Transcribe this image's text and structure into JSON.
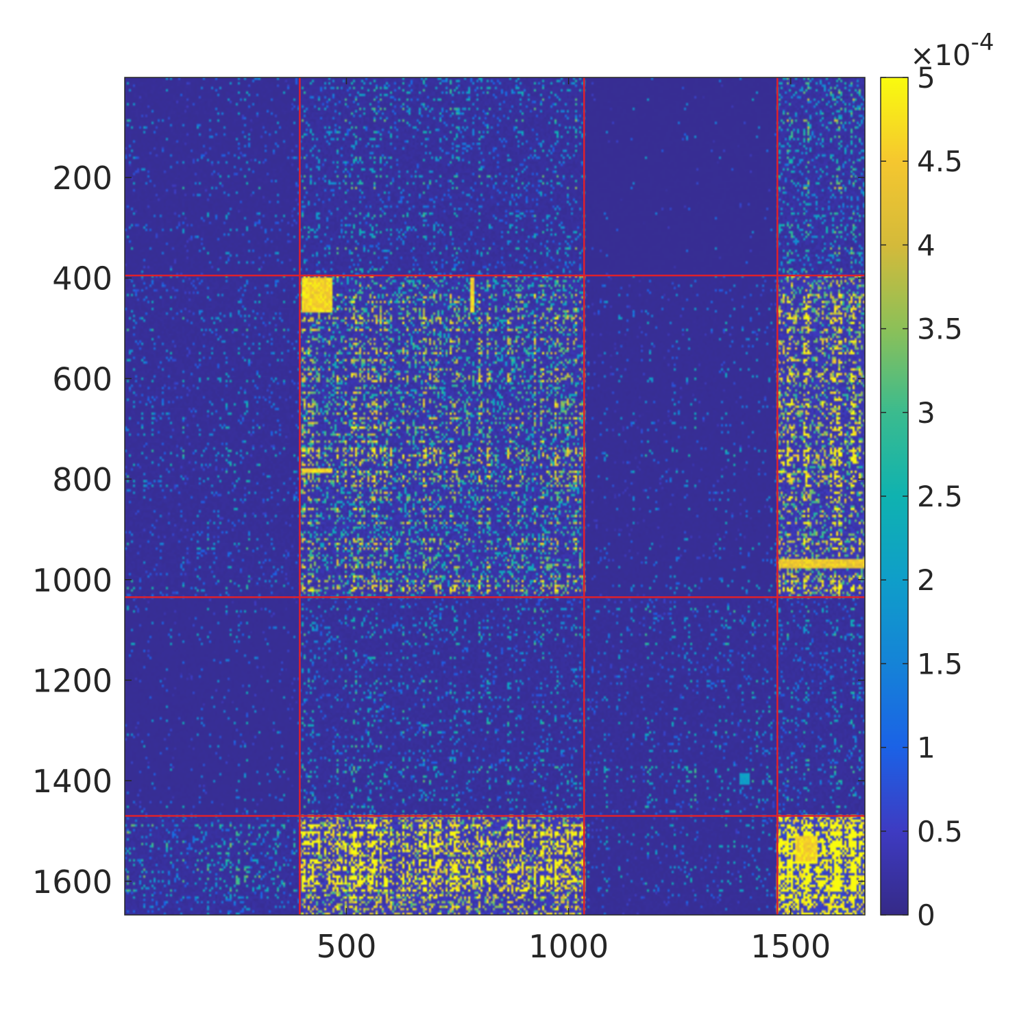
{
  "chart_data": {
    "type": "heatmap",
    "title": "",
    "xlabel": "",
    "ylabel": "",
    "xlim": [
      1,
      1667
    ],
    "ylim": [
      1,
      1667
    ],
    "x_ticks": [
      500,
      1000,
      1500
    ],
    "x_tick_labels": [
      "500",
      "1000",
      "1500"
    ],
    "y_ticks": [
      200,
      400,
      600,
      800,
      1000,
      1200,
      1400,
      1600
    ],
    "y_tick_labels": [
      "200",
      "400",
      "600",
      "800",
      "1000",
      "1200",
      "1400",
      "1600"
    ],
    "grid": false,
    "colormap": "parula",
    "colorbar": {
      "range": [
        0,
        5
      ],
      "exponent_label": "×10",
      "exponent_power": "-4",
      "ticks": [
        0,
        0.5,
        1,
        1.5,
        2,
        2.5,
        3,
        3.5,
        4,
        4.5,
        5
      ],
      "tick_labels": [
        "0",
        "0.5",
        "1",
        "1.5",
        "2",
        "2.5",
        "3",
        "3.5",
        "4",
        "4.5",
        "5"
      ]
    },
    "block_boundaries": [
      395,
      1035,
      1470
    ],
    "block_boundary_color": "#e0202a",
    "block_mean_levels": [
      [
        0.25,
        0.55,
        0.05,
        0.85
      ],
      [
        0.35,
        1.2,
        0.2,
        1.6
      ],
      [
        0.15,
        0.45,
        0.35,
        0.5
      ],
      [
        0.6,
        1.8,
        0.3,
        2.6
      ]
    ],
    "highlights": [
      {
        "rows": [
          397,
          470
        ],
        "cols": [
          397,
          470
        ],
        "level": 5
      },
      {
        "rows": [
          780,
          786
        ],
        "cols": [
          397,
          470
        ],
        "level": 5
      },
      {
        "rows": [
          397,
          470
        ],
        "cols": [
          780,
          786
        ],
        "level": 5
      },
      {
        "rows": [
          1385,
          1410
        ],
        "cols": [
          1385,
          1410
        ],
        "level": 2.2
      },
      {
        "rows": [
          1510,
          1560
        ],
        "cols": [
          1510,
          1560
        ],
        "level": 5
      },
      {
        "rows": [
          960,
          975
        ],
        "cols": [
          1475,
          1667
        ],
        "level": 4.8
      }
    ]
  }
}
